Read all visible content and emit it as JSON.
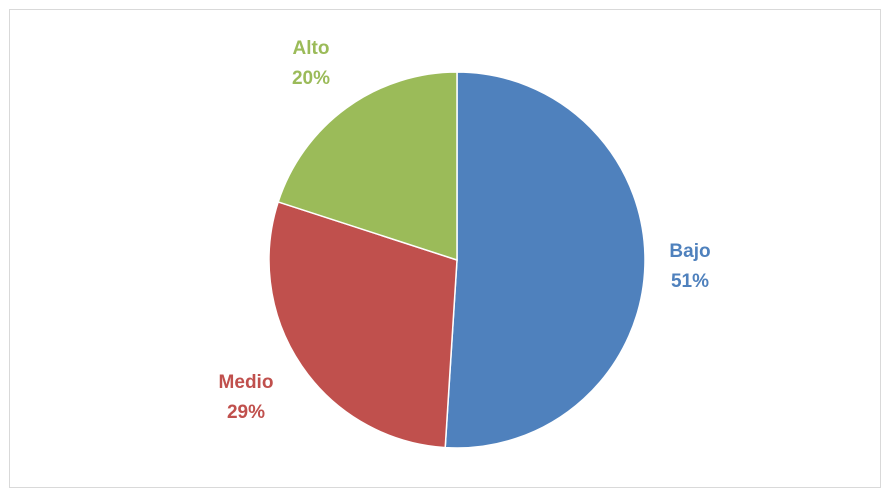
{
  "chart_data": {
    "type": "pie",
    "title": "",
    "slices": [
      {
        "category": "Bajo",
        "percent_label": "51%",
        "value": 51,
        "color": "#4f81bd"
      },
      {
        "category": "Medio",
        "percent_label": "29%",
        "value": 29,
        "color": "#c0504d"
      },
      {
        "category": "Alto",
        "percent_label": "20%",
        "value": 20,
        "color": "#9bbb59"
      }
    ],
    "start_angle_deg": 0,
    "direction": "clockwise",
    "legend": "none",
    "data_labels": "outside, category name and percentage"
  }
}
